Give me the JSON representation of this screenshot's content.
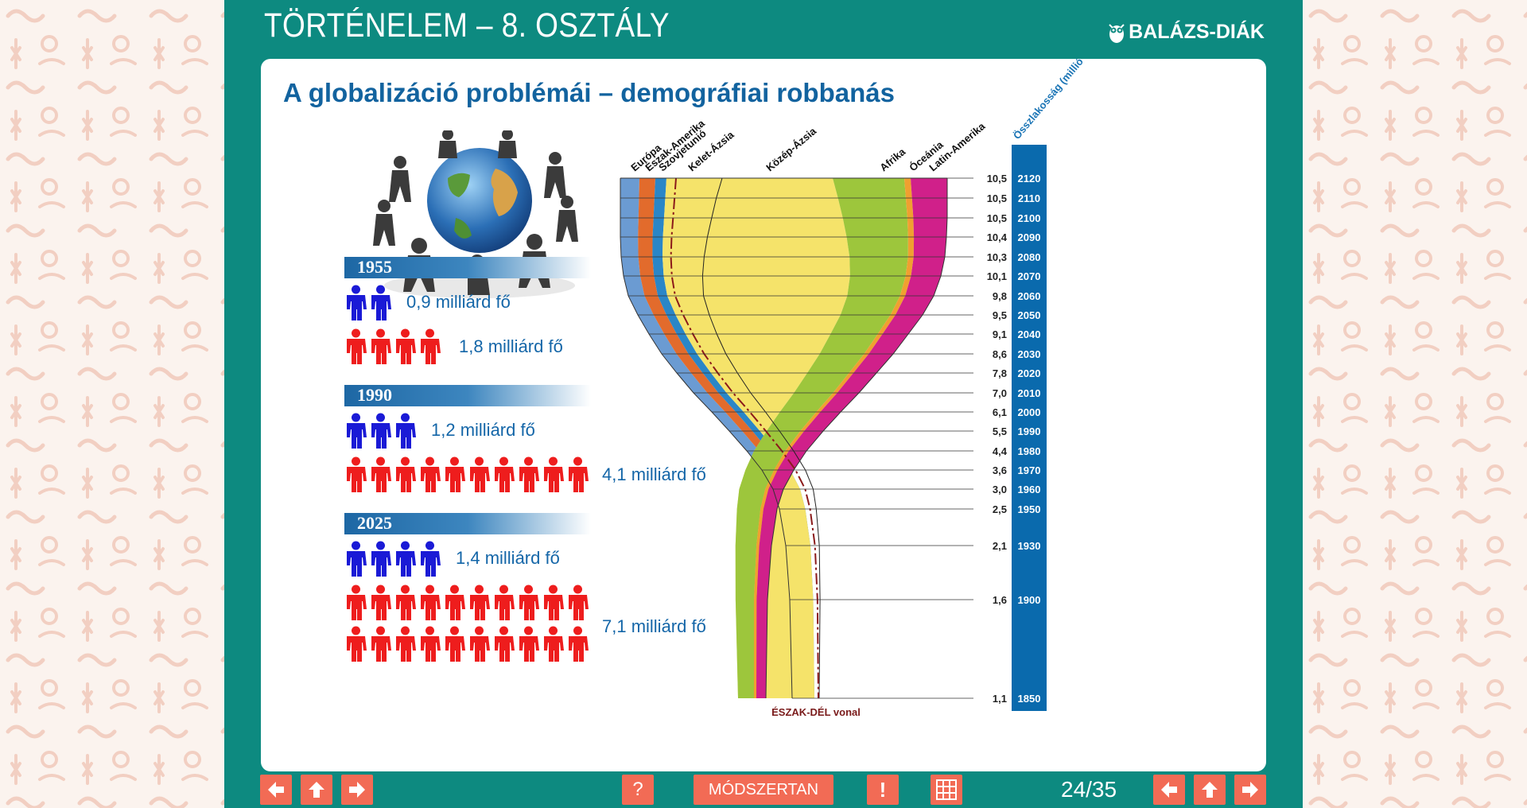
{
  "header": {
    "title": "TÖRTÉNELEM – 8. OSZTÁLY",
    "brand": "BALÁZS-DIÁK"
  },
  "panel": {
    "title": "A globalizáció problémái – demográfiai robbanás"
  },
  "population_groups": [
    {
      "year": "1955",
      "blue_label": "0,9 milliárd fő",
      "blue_count": 2,
      "red_label": "1,8 milliárd fő",
      "red_count": 4
    },
    {
      "year": "1990",
      "blue_label": "1,2 milliárd fő",
      "blue_count": 3,
      "red_label": "4,1 milliárd fő",
      "red_count": 10
    },
    {
      "year": "2025",
      "blue_label": "1,4 milliárd fő",
      "blue_count": 4,
      "red_label": "7,1 milliárd fő",
      "red_count": 20
    }
  ],
  "chart_data": {
    "type": "area",
    "series_labels": [
      "Európa",
      "Észak-Amerika",
      "Szovjetunió",
      "Kelet-Ázsia",
      "Közép-Ázsia",
      "Afrika",
      "Óceánia",
      "Latin-Amerika"
    ],
    "total_label": "Összlakosság (millió fő)",
    "years": [
      "2120",
      "2110",
      "2100",
      "2090",
      "2080",
      "2070",
      "2060",
      "2050",
      "2040",
      "2030",
      "2020",
      "2010",
      "2000",
      "1990",
      "1980",
      "1970",
      "1960",
      "1950",
      "1930",
      "1900",
      "1850"
    ],
    "totals": [
      "10,5",
      "10,5",
      "10,5",
      "10,4",
      "10,3",
      "10,1",
      "9,8",
      "9,5",
      "9,1",
      "8,6",
      "7,8",
      "7,0",
      "6,1",
      "5,5",
      "4,4",
      "3,6",
      "3,0",
      "2,5",
      "2,1",
      "1,6",
      "1,1"
    ],
    "north_south_label": "ÉSZAK-DÉL vonal",
    "colors": {
      "europe": "#6b9bd2",
      "north_america": "#e26b2c",
      "ussr": "#2a86c7",
      "east_asia": "#f5e36a",
      "central_asia": "#f7e96c",
      "africa": "#9dc63c",
      "oceania": "#f0a030",
      "latin_america": "#d0208a",
      "axis_bar": "#0a6aad"
    }
  },
  "footer": {
    "help_label": "?",
    "method_label": "MÓDSZERTAN",
    "alert_label": "!",
    "page": "24/35"
  }
}
